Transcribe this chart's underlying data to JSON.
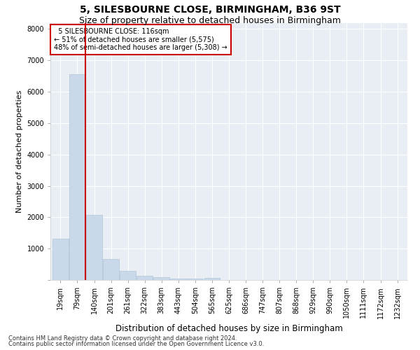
{
  "title1": "5, SILESBOURNE CLOSE, BIRMINGHAM, B36 9ST",
  "title2": "Size of property relative to detached houses in Birmingham",
  "xlabel": "Distribution of detached houses by size in Birmingham",
  "ylabel": "Number of detached properties",
  "footer1": "Contains HM Land Registry data © Crown copyright and database right 2024.",
  "footer2": "Contains public sector information licensed under the Open Government Licence v3.0.",
  "annotation_line1": "5 SILESBOURNE CLOSE: 116sqm",
  "annotation_line2": "← 51% of detached houses are smaller (5,575)",
  "annotation_line3": "48% of semi-detached houses are larger (5,308) →",
  "bar_color": "#c9d9e9",
  "bar_edgecolor": "#b0c4d8",
  "red_line_color": "#cc0000",
  "categories": [
    "19sqm",
    "79sqm",
    "140sqm",
    "201sqm",
    "261sqm",
    "322sqm",
    "383sqm",
    "443sqm",
    "504sqm",
    "565sqm",
    "625sqm",
    "686sqm",
    "747sqm",
    "807sqm",
    "868sqm",
    "929sqm",
    "990sqm",
    "1050sqm",
    "1111sqm",
    "1172sqm",
    "1232sqm"
  ],
  "values": [
    1320,
    6560,
    2070,
    680,
    295,
    135,
    80,
    55,
    45,
    65,
    0,
    0,
    0,
    0,
    0,
    0,
    0,
    0,
    0,
    0,
    0
  ],
  "ylim": [
    0,
    8200
  ],
  "yticks": [
    0,
    1000,
    2000,
    3000,
    4000,
    5000,
    6000,
    7000,
    8000
  ],
  "background_color": "#e8eef4",
  "grid_color": "#ffffff",
  "title_fontsize": 10,
  "subtitle_fontsize": 9,
  "axis_label_fontsize": 8,
  "tick_fontsize": 7,
  "footer_fontsize": 6,
  "red_line_x": 1.47
}
